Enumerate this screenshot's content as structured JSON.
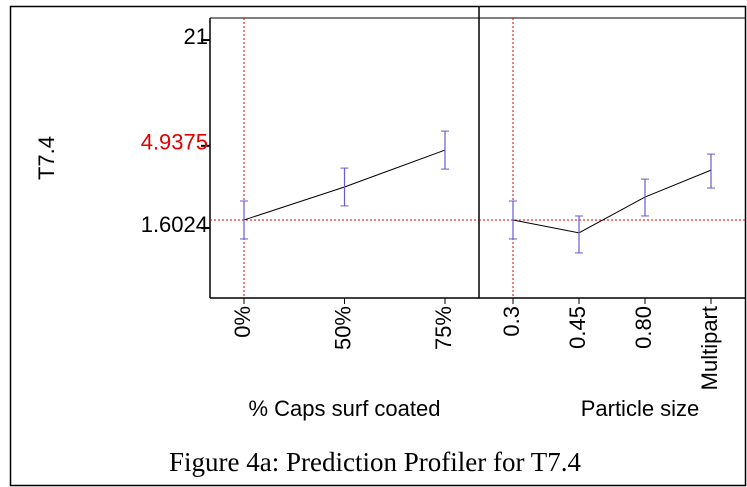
{
  "caption": "Figure 4a: Prediction Profiler for T7.4",
  "chart_data": {
    "type": "profiler",
    "y_label": "T7.4",
    "log_y": true,
    "ylim": [
      0.615,
      28.4
    ],
    "yticks": [
      21,
      4.9375,
      1.6024
    ],
    "line_color": "#000000",
    "error_color": "#6a5acd",
    "reference_color": "#e00000",
    "panels": [
      {
        "x_label": "% Caps surf coated",
        "categories": [
          "0%",
          "50%",
          "75%"
        ],
        "values": [
          1.79,
          2.81,
          4.66
        ],
        "lower": [
          1.38,
          2.17,
          3.59
        ],
        "upper": [
          2.32,
          3.64,
          6.04
        ]
      },
      {
        "x_label": "Particle size",
        "categories": [
          "0.3",
          "0.45",
          "0.80",
          "Multipart"
        ],
        "values": [
          1.79,
          1.5,
          2.45,
          3.54
        ],
        "lower": [
          1.38,
          1.14,
          1.89,
          2.77
        ],
        "upper": [
          2.32,
          1.89,
          3.13,
          4.41
        ]
      }
    ]
  }
}
